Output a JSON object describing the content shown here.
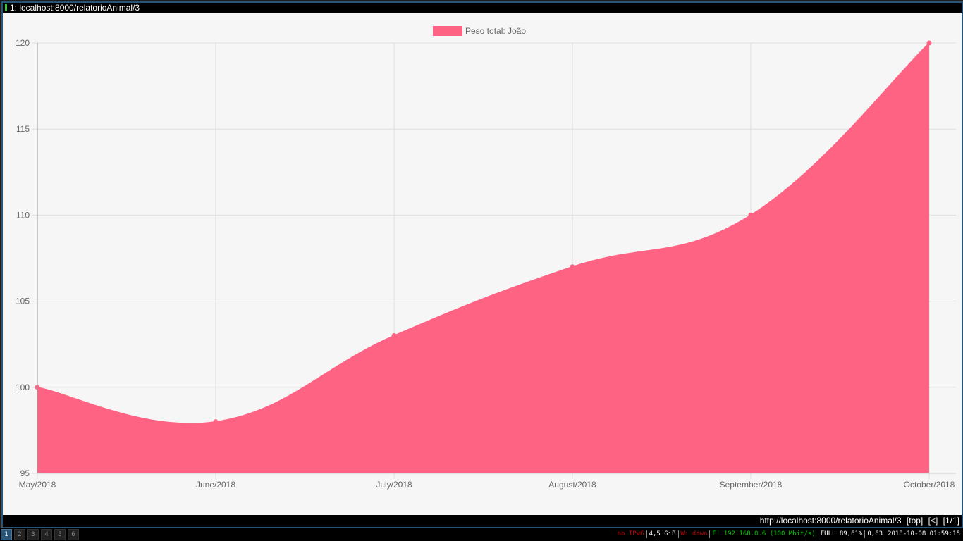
{
  "window": {
    "title": "1: localhost:8000/relatorioAnimal/3"
  },
  "url_bar": {
    "url": "http://localhost:8000/relatorioAnimal/3",
    "scroll": "[top]",
    "nav": "[<]",
    "position": "[1/1]"
  },
  "workspaces": [
    "1",
    "2",
    "3",
    "4",
    "5",
    "6"
  ],
  "status": {
    "ipv6": {
      "text": "no IPv6",
      "color": "#cc0000"
    },
    "memory": {
      "text": "4,5 GiB",
      "color": "#ffffff"
    },
    "wireless": {
      "text": "W: down",
      "color": "#cc0000"
    },
    "ethernet": {
      "text": "E: 192.168.0.6 (100 Mbit/s)",
      "color": "#00cc00"
    },
    "battery": {
      "text": "FULL 89,61%",
      "color": "#ffffff"
    },
    "load": {
      "text": "0,63",
      "color": "#ffffff"
    },
    "datetime": {
      "text": "2018-10-08 01:59:15",
      "color": "#ffffff"
    }
  },
  "chart_data": {
    "type": "area",
    "categories": [
      "May/2018",
      "June/2018",
      "July/2018",
      "August/2018",
      "September/2018",
      "October/2018"
    ],
    "series": [
      {
        "name": "Peso total: João",
        "values": [
          100,
          98,
          103,
          107,
          110,
          120
        ],
        "color": "#ff6384"
      }
    ],
    "ylim": [
      95,
      120
    ],
    "yticks": [
      95,
      100,
      105,
      110,
      115,
      120
    ],
    "grid": true,
    "legend": "top-center"
  }
}
